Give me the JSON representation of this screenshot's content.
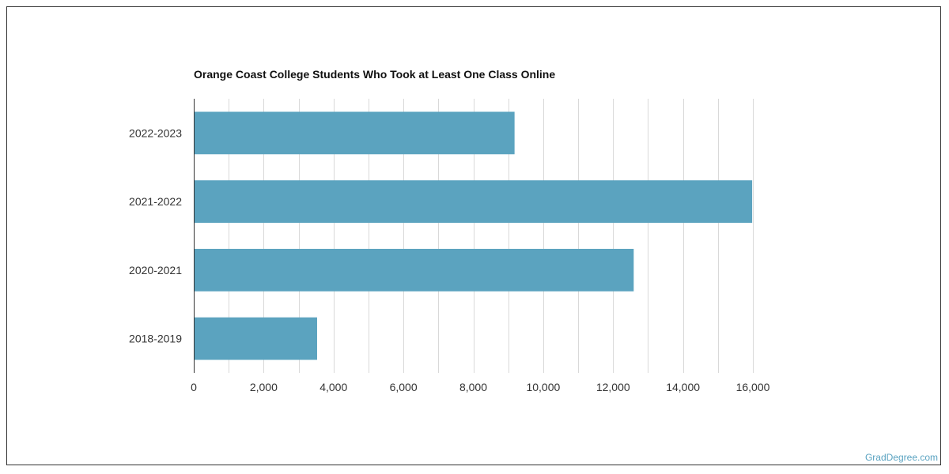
{
  "chart_data": {
    "type": "bar",
    "orientation": "horizontal",
    "title": "Orange Coast College Students Who Took at Least One Class Online",
    "xlabel": "",
    "ylabel": "",
    "categories": [
      "2022-2023",
      "2021-2022",
      "2020-2021",
      "2018-2019"
    ],
    "values": [
      9180,
      15980,
      12590,
      3530
    ],
    "xlim": [
      0,
      16000
    ],
    "x_ticks": [
      0,
      2000,
      4000,
      6000,
      8000,
      10000,
      12000,
      14000,
      16000
    ],
    "x_tick_labels": [
      "0",
      "2,000",
      "4,000",
      "6,000",
      "8,000",
      "10,000",
      "12,000",
      "14,000",
      "16,000"
    ],
    "grid": true,
    "bar_color": "#5ba3bf"
  },
  "watermark": "GradDegree.com"
}
